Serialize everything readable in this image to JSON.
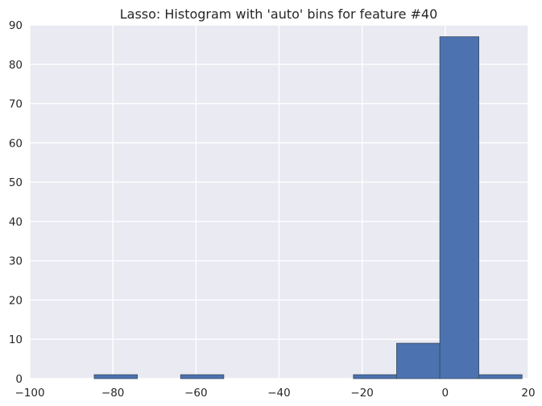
{
  "chart_data": {
    "type": "bar",
    "title": "Lasso: Histogram with 'auto' bins for feature #40",
    "xlabel": "",
    "ylabel": "",
    "xlim": [
      -100,
      20
    ],
    "ylim": [
      0,
      90
    ],
    "xticks": [
      -100,
      -80,
      -60,
      -40,
      -20,
      0,
      20
    ],
    "xtick_labels": [
      "−100",
      "−80",
      "−60",
      "−40",
      "−20",
      "0",
      "20"
    ],
    "yticks": [
      0,
      10,
      20,
      30,
      40,
      50,
      60,
      70,
      80,
      90
    ],
    "ytick_labels": [
      "0",
      "10",
      "20",
      "30",
      "40",
      "50",
      "60",
      "70",
      "80",
      "90"
    ],
    "bins": [
      {
        "x0": -84.5,
        "x1": -74.1,
        "count": 1
      },
      {
        "x0": -74.1,
        "x1": -63.7,
        "count": 0
      },
      {
        "x0": -63.7,
        "x1": -53.3,
        "count": 1
      },
      {
        "x0": -53.3,
        "x1": -42.9,
        "count": 0
      },
      {
        "x0": -42.9,
        "x1": -32.5,
        "count": 0
      },
      {
        "x0": -32.5,
        "x1": -22.1,
        "count": 0
      },
      {
        "x0": -22.1,
        "x1": -11.7,
        "count": 1
      },
      {
        "x0": -11.7,
        "x1": -1.3,
        "count": 9
      },
      {
        "x0": -1.3,
        "x1": 8.1,
        "count": 87
      },
      {
        "x0": 8.1,
        "x1": 18.5,
        "count": 1
      }
    ],
    "grid": true,
    "colors": {
      "bar_fill": "#4c72b0",
      "bar_edge": "#3a4a5e",
      "plot_background": "#eaeaf2",
      "grid": "#ffffff",
      "text": "#262626"
    }
  }
}
